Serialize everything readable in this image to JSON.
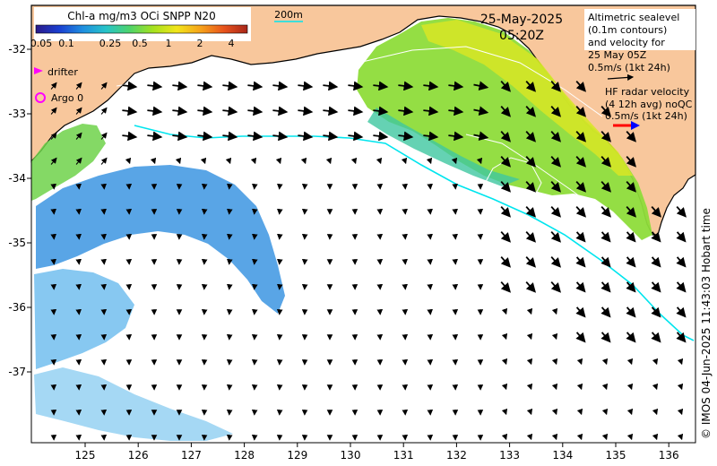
{
  "colorbar": {
    "title": "Chl-a mg/m3 OCi SNPP N20",
    "ticks": [
      "0.05",
      "0.1",
      "0.25",
      "0.5",
      "1",
      "2",
      "4"
    ],
    "gradient": [
      "#2a1a8a",
      "#1a3fd1",
      "#1f8fe0",
      "#27c4c8",
      "#4ed36a",
      "#a6e21e",
      "#f2e51a",
      "#f6a31a",
      "#e8531c",
      "#a8261a"
    ]
  },
  "date": "25-May-2025",
  "time": "05:20Z",
  "depth_label": "200m",
  "legend": {
    "drifter": "drifter",
    "argo": "Argo 0",
    "altimetry_lines": [
      "Altimetric sealevel",
      "(0.1m contours)",
      "and velocity for",
      "25 May 05Z",
      "0.5m/s (1kt 24h)"
    ],
    "hf_lines": [
      "HF radar velocity",
      "(4 12h avg) noQC",
      "0.5m/s (1kt 24h)"
    ]
  },
  "axes": {
    "x_ticks": [
      "125",
      "126",
      "127",
      "128",
      "129",
      "130",
      "131",
      "132",
      "133",
      "134",
      "135",
      "136"
    ],
    "y_ticks": [
      "-32",
      "-33",
      "-34",
      "-35",
      "-36",
      "-37"
    ]
  },
  "copyright": "© IMOS 04-Jun-2025 11:43:03 Hobart time",
  "colors": {
    "land": "#f8c79c",
    "drifter": "#ff00ff",
    "argo": "#ff00ff",
    "hf_radar_red": "#ff0000",
    "hf_radar_blue": "#0000ff",
    "isobath": "#00e5ee"
  }
}
